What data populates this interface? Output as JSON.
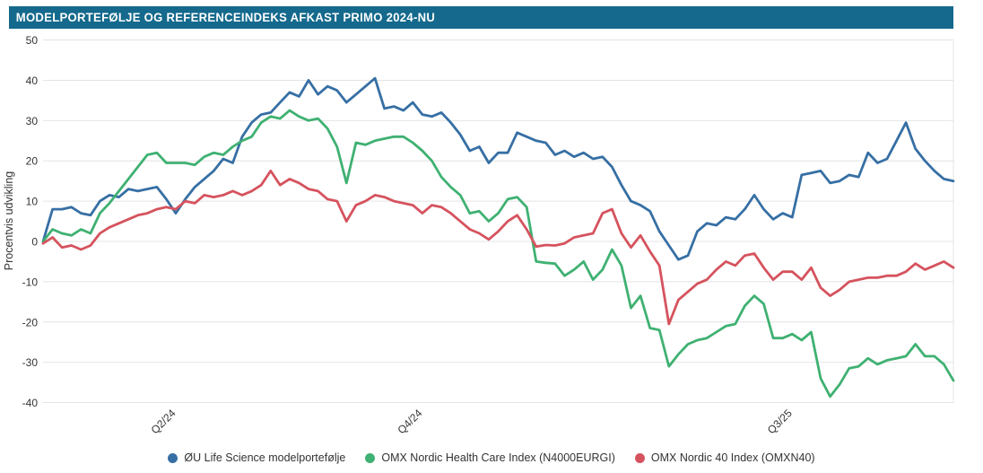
{
  "title": "MODELPORTEFØLJE OG REFERENCEINDEKS AFKAST PRIMO 2024-NU",
  "colors": {
    "header_bg": "#14698C",
    "header_text": "#FFFFFF",
    "grid": "#E4E4E4",
    "axis_text": "#333333",
    "background": "#FFFFFF"
  },
  "chart_data": {
    "type": "line",
    "title": "MODELPORTEFØLJE OG REFERENCEINDEKS AFKAST PRIMO 2024-NU",
    "ylabel": "Procentvis udvikling",
    "ylim": [
      -40,
      50
    ],
    "ytick_step": 10,
    "grid": true,
    "legend_position": "bottom",
    "x_description": "Weekly observations from primo 2024 to now",
    "xtick_labels": [
      {
        "label": "Q2/24",
        "index": 13
      },
      {
        "label": "Q4/24",
        "index": 39
      },
      {
        "label": "Q3/25",
        "index": 78
      }
    ],
    "series": [
      {
        "name": "ØU Life Science modelportefølje",
        "color": "#366FA4",
        "values": [
          0,
          8,
          8,
          8.5,
          7,
          6.5,
          10,
          11.5,
          11,
          13,
          12.5,
          13,
          13.5,
          10.5,
          7,
          10.5,
          13.5,
          15.5,
          17.5,
          20.5,
          19.5,
          26,
          29.5,
          31.5,
          32,
          34.5,
          37,
          36,
          40,
          36.5,
          38.5,
          37.5,
          34.5,
          36.5,
          38.5,
          40.5,
          33,
          33.5,
          32.5,
          34.5,
          31.5,
          31,
          32,
          29.5,
          26.5,
          22.5,
          23.5,
          19.5,
          22,
          22,
          27,
          26,
          25,
          24.5,
          21.5,
          22.5,
          21,
          22,
          20.5,
          21,
          18.5,
          14,
          10,
          9,
          7.5,
          2.5,
          -1,
          -4.5,
          -3.5,
          2.5,
          4.5,
          4,
          6,
          5.5,
          8,
          11.5,
          8,
          5.5,
          7,
          6,
          16.5,
          17,
          17.5,
          14.5,
          15,
          16.5,
          16,
          22,
          19.5,
          20.5,
          25,
          29.5,
          23,
          20,
          17.5,
          15.5,
          15
        ]
      },
      {
        "name": "OMX Nordic Health Care Index (N4000EURGI)",
        "color": "#3FB172",
        "values": [
          0,
          3,
          2,
          1.5,
          3,
          2,
          7,
          9.5,
          12.5,
          15.5,
          18.5,
          21.5,
          22,
          19.5,
          19.5,
          19.5,
          19,
          21,
          22,
          21.5,
          23.5,
          25,
          26,
          29.5,
          31,
          30.5,
          32.5,
          31,
          30,
          30.5,
          28,
          23.5,
          14.5,
          24.5,
          24,
          25,
          25.5,
          26,
          26,
          24.5,
          22.5,
          20,
          16,
          13.5,
          11.5,
          7,
          7.5,
          5,
          7,
          10.5,
          11,
          8.5,
          -5,
          -5.3,
          -5.5,
          -8.5,
          -7,
          -5,
          -9.5,
          -7,
          -2,
          -6,
          -16.5,
          -13.5,
          -21.5,
          -22,
          -31,
          -28,
          -25.5,
          -24.5,
          -24,
          -22.5,
          -21,
          -20.5,
          -16,
          -13.5,
          -15.5,
          -24,
          -24,
          -23,
          -24.5,
          -22.5,
          -34,
          -38.5,
          -35.5,
          -31.5,
          -31,
          -29,
          -30.5,
          -29.5,
          -29,
          -28.5,
          -25.5,
          -28.5,
          -28.5,
          -30.5,
          -34.5
        ]
      },
      {
        "name": "OMX Nordic 40 Index (OMXN40)",
        "color": "#D5535E",
        "values": [
          -0.5,
          1,
          -1.5,
          -1,
          -2,
          -1,
          2,
          3.5,
          4.5,
          5.5,
          6.5,
          7,
          8,
          8.5,
          8,
          10,
          9.5,
          11.5,
          11,
          11.5,
          12.5,
          11.5,
          12.5,
          14,
          17.5,
          14,
          15.5,
          14.5,
          13,
          12.5,
          10.5,
          10,
          5,
          9,
          10,
          11.5,
          11,
          10,
          9.5,
          9,
          7,
          9,
          8.5,
          7,
          5,
          3,
          2,
          0.5,
          2.5,
          5,
          6.5,
          3,
          -1.3,
          -0.9,
          -1,
          -0.5,
          1,
          1.5,
          2,
          7,
          8,
          2,
          -1.5,
          1.5,
          -2.5,
          -6,
          -20.5,
          -14.5,
          -12.5,
          -10.5,
          -9.5,
          -7,
          -5,
          -6,
          -3.5,
          -3,
          -6.5,
          -9.5,
          -7.5,
          -7.5,
          -9.5,
          -6.5,
          -11.5,
          -13.5,
          -12,
          -10,
          -9.5,
          -9,
          -9,
          -8.5,
          -8.5,
          -7.5,
          -5.5,
          -7,
          -6,
          -5,
          -6.5
        ]
      }
    ]
  }
}
